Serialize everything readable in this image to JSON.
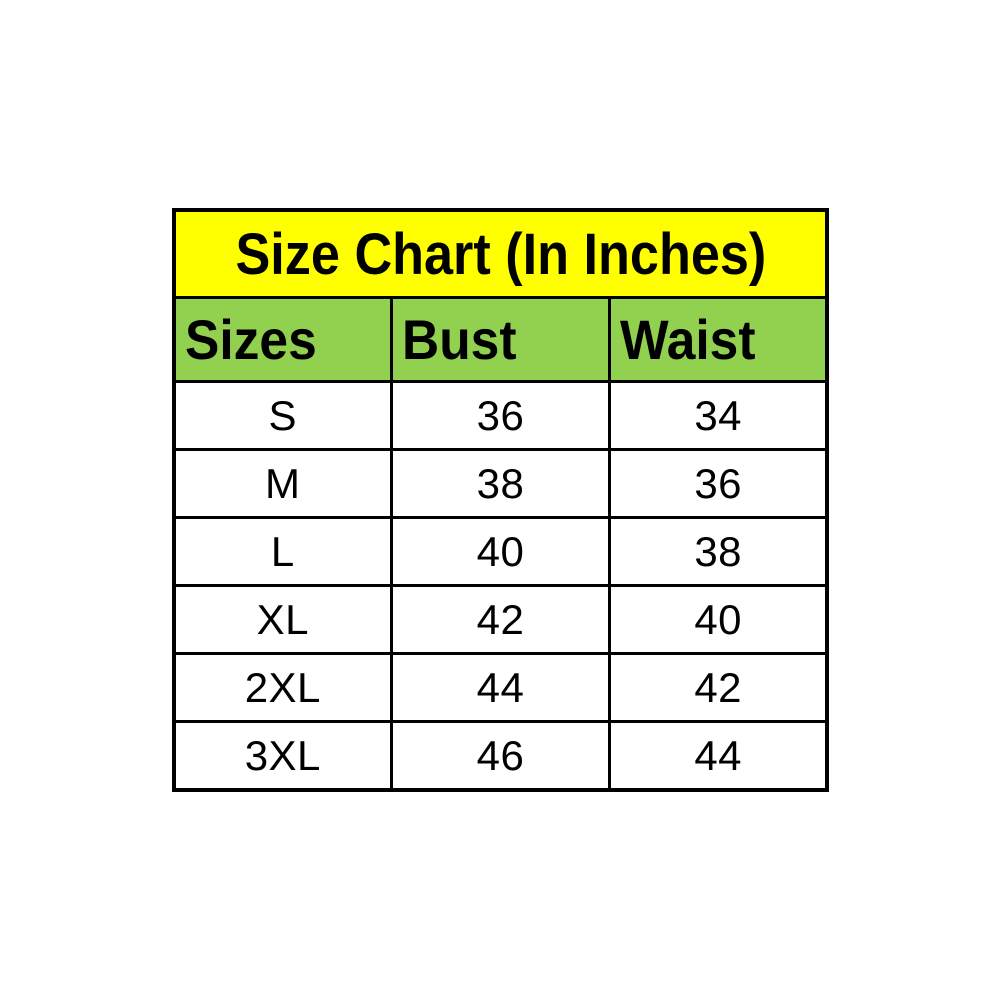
{
  "table": {
    "title": "Size Chart (In Inches)",
    "headers": [
      "Sizes",
      "Bust",
      "Waist"
    ],
    "rows": [
      {
        "size": "S",
        "bust": "36",
        "waist": "34"
      },
      {
        "size": "M",
        "bust": "38",
        "waist": "36"
      },
      {
        "size": "L",
        "bust": "40",
        "waist": "38"
      },
      {
        "size": "XL",
        "bust": "42",
        "waist": "40"
      },
      {
        "size": "2XL",
        "bust": "44",
        "waist": "42"
      },
      {
        "size": "3XL",
        "bust": "46",
        "waist": "44"
      }
    ]
  },
  "colors": {
    "page_bg": "#FFFFFF",
    "title_bg": "#FFFF00",
    "header_bg": "#92D050",
    "cell_bg": "#FFFFFF",
    "border": "#000000",
    "text": "#000000"
  },
  "chart_data": {
    "type": "table",
    "title": "Size Chart (In Inches)",
    "units": "inches",
    "columns": [
      "Sizes",
      "Bust",
      "Waist"
    ],
    "rows": [
      [
        "S",
        36,
        34
      ],
      [
        "M",
        38,
        36
      ],
      [
        "L",
        40,
        38
      ],
      [
        "XL",
        42,
        40
      ],
      [
        "2XL",
        44,
        42
      ],
      [
        "3XL",
        46,
        44
      ]
    ]
  }
}
